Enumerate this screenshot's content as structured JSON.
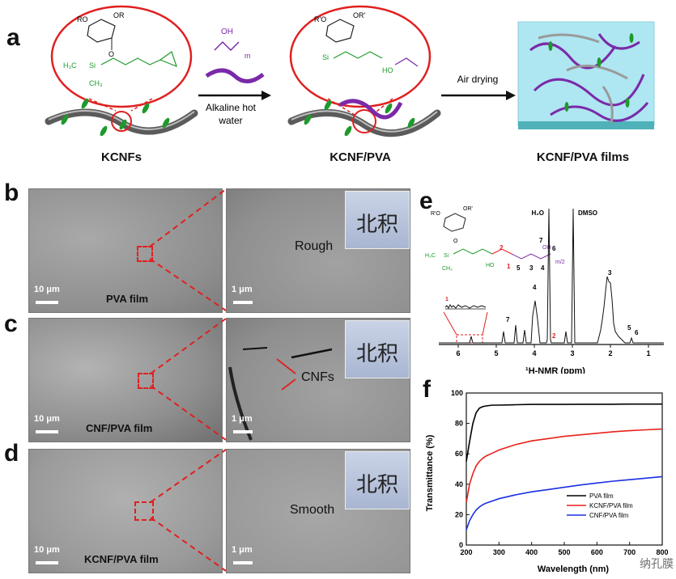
{
  "panel_a": {
    "letter": "a",
    "labels": {
      "kcnfs": "KCNFs",
      "kcnf_pva": "KCNF/PVA",
      "kcnf_pva_films": "KCNF/PVA films"
    },
    "step1": {
      "line1": "Alkaline hot",
      "line2": "water"
    },
    "step2": "Air drying",
    "chem": {
      "ro": "RO",
      "or": "OR",
      "ro2": "R'O",
      "or2": "OR'",
      "h3c": "H₃C",
      "ch3": "CH₃",
      "si": "Si",
      "o": "O",
      "oh": "OH",
      "ho": "HO",
      "m": "m"
    }
  },
  "panel_b": {
    "letter": "b",
    "caption": "PVA film",
    "note": "Rough",
    "scale_left": "10 μm",
    "scale_right": "1 μm",
    "photo_text": "北积"
  },
  "panel_c": {
    "letter": "c",
    "caption": "CNF/PVA film",
    "note": "CNFs",
    "scale_left": "10 μm",
    "scale_right": "1 μm",
    "photo_text": "北积"
  },
  "panel_d": {
    "letter": "d",
    "caption": "KCNF/PVA film",
    "note": "Smooth",
    "scale_left": "10 μm",
    "scale_right": "1 μm",
    "photo_text": "北积"
  },
  "panel_e": {
    "letter": "e",
    "xlabel": "¹H-NMR (ppm)",
    "ticks": [
      "6",
      "5",
      "4",
      "3",
      "2",
      "1"
    ],
    "peaks": {
      "h2o": "H₂O",
      "dmso": "DMSO"
    },
    "peak_numbers": [
      "1",
      "2",
      "3",
      "4",
      "5",
      "6",
      "7"
    ],
    "struct_numbers": [
      "1",
      "2",
      "3",
      "4",
      "5",
      "6",
      "7"
    ],
    "chem": {
      "ro": "R'O",
      "or": "OR'",
      "h3c": "H₃C",
      "ch3": "CH₃",
      "si": "Si",
      "o": "O",
      "oh": "OH",
      "ho": "HO",
      "m2": "m/2"
    }
  },
  "panel_f": {
    "letter": "f",
    "watermark": "纳孔膜",
    "colors": {
      "pva": "#000000",
      "kcnf": "#e8211b",
      "cnf": "#1b2fe0"
    }
  },
  "chart_data": {
    "type": "line",
    "title": "",
    "xlabel": "Wavelength (nm)",
    "ylabel": "Transmittance (%)",
    "xlim": [
      200,
      800
    ],
    "ylim": [
      0,
      100
    ],
    "xticks": [
      200,
      300,
      400,
      500,
      600,
      700,
      800
    ],
    "yticks": [
      0,
      20,
      40,
      60,
      80,
      100
    ],
    "legend_position": "lower-right",
    "x": [
      200,
      210,
      220,
      230,
      240,
      250,
      260,
      280,
      300,
      350,
      400,
      450,
      500,
      550,
      600,
      650,
      700,
      750,
      800
    ],
    "series": [
      {
        "name": "PVA film",
        "values": [
          55,
          68,
          80,
          87,
          90,
          91,
          91.5,
          92,
          92,
          92.3,
          92.5,
          92.5,
          92.5,
          92.6,
          92.6,
          92.6,
          92.7,
          92.7,
          92.7
        ]
      },
      {
        "name": "KCNF/PVA film",
        "values": [
          28,
          40,
          47,
          52,
          55,
          57,
          58.5,
          60.5,
          62.5,
          66,
          68.5,
          70,
          71.5,
          72.5,
          73.5,
          74.5,
          75.2,
          75.8,
          76.3
        ]
      },
      {
        "name": "CNF/PVA film",
        "values": [
          10,
          16,
          20,
          23,
          25,
          26.5,
          27.5,
          29,
          30.5,
          33,
          35,
          36.5,
          38,
          39.5,
          40.8,
          42,
          43,
          44,
          45
        ]
      }
    ]
  }
}
